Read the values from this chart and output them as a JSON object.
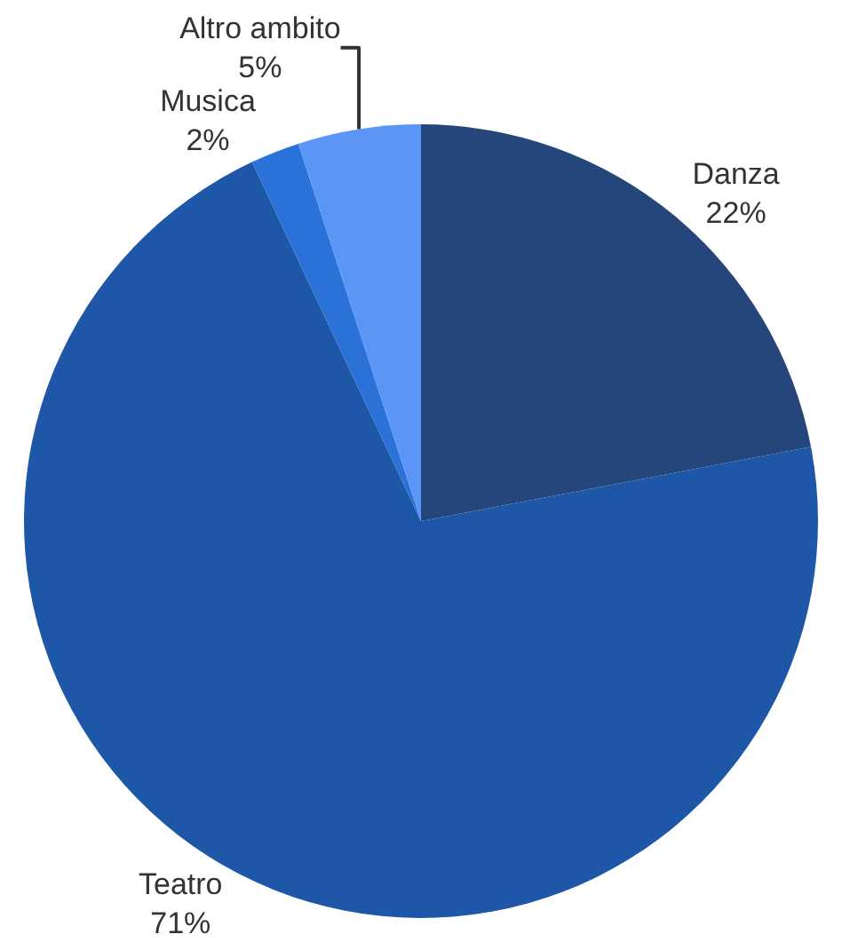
{
  "chart_data": {
    "type": "pie",
    "categories": [
      "Danza",
      "Teatro",
      "Musica",
      "Altro ambito"
    ],
    "values": [
      22,
      71,
      2,
      5
    ],
    "value_labels": [
      "22%",
      "71%",
      "2%",
      "5%"
    ],
    "colors": [
      "#25467a",
      "#1f57a8",
      "#2a72d8",
      "#5b96f7"
    ],
    "legend": false
  }
}
